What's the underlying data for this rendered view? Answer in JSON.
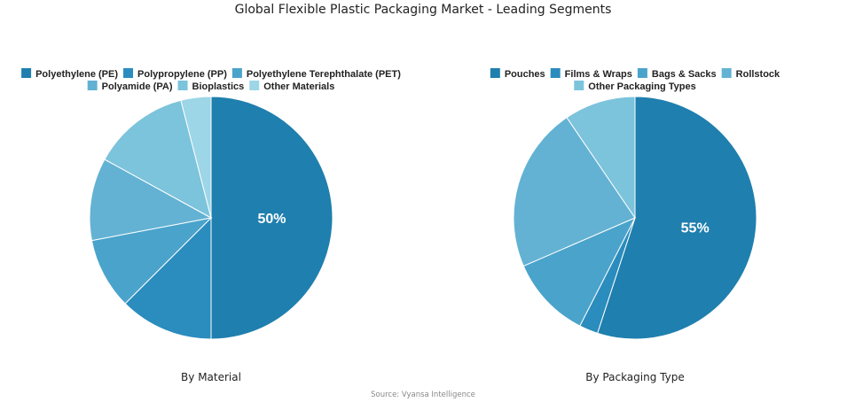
{
  "title": "Global Flexible Plastic Packaging Market - Leading Segments",
  "source": "Source: Vyansa Intelligence",
  "chart_data": [
    {
      "type": "pie",
      "subtitle": "By Material",
      "categories": [
        "Polyethylene (PE)",
        "Polypropylene (PP)",
        "Polyethylene Terephthalate (PET)",
        "Polyamide (PA)",
        "Bioplastics",
        "Other Materials"
      ],
      "values": [
        50,
        12.5,
        9.5,
        11,
        13,
        4
      ],
      "colors": [
        "#1f7fae",
        "#2b8cbe",
        "#4aa3cb",
        "#63b2d3",
        "#7cc3dc",
        "#9dd6e6"
      ],
      "shown_label": "50%",
      "legend_rows": [
        [
          0,
          1,
          2
        ],
        [
          3,
          4,
          5
        ]
      ],
      "legend_position": "top"
    },
    {
      "type": "pie",
      "subtitle": "By Packaging Type",
      "categories": [
        "Pouches",
        "Films & Wraps",
        "Bags & Sacks",
        "Rollstock",
        "Other Packaging Types"
      ],
      "values": [
        55,
        2.5,
        11,
        22,
        9.5
      ],
      "colors": [
        "#1f7fae",
        "#2b8cbe",
        "#4aa3cb",
        "#63b2d3",
        "#7cc3dc"
      ],
      "shown_label": "55%",
      "legend_rows": [
        [
          0,
          1,
          2,
          3
        ],
        [
          4
        ]
      ],
      "legend_position": "top"
    }
  ]
}
